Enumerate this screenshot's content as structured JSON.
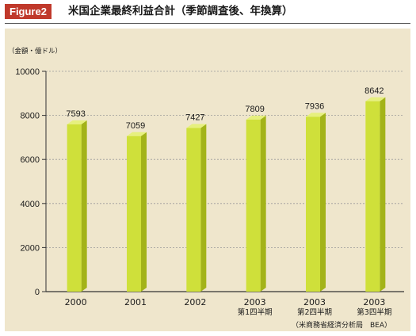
{
  "header": {
    "figure_tag": "Figure2",
    "title": "米国企業最終利益合計（季節調査後、年換算）"
  },
  "chart_data": {
    "type": "bar",
    "unit_label": "（金額・億ドル）",
    "categories": [
      [
        "2000"
      ],
      [
        "2001"
      ],
      [
        "2002"
      ],
      [
        "2003",
        "第1四半期"
      ],
      [
        "2003",
        "第2四半期"
      ],
      [
        "2003",
        "第3四半期"
      ]
    ],
    "values": [
      7593,
      7059,
      7427,
      7809,
      7936,
      8642
    ],
    "data_labels": [
      "7593",
      "7059",
      "7427",
      "7809",
      "7936",
      "8642"
    ],
    "ylim": [
      0,
      10000
    ],
    "yticks": [
      0,
      2000,
      4000,
      6000,
      8000,
      10000
    ],
    "grid": true,
    "bar_colors": {
      "front": "#cfe03a",
      "side": "#a3b319",
      "top": "#e6f07e"
    },
    "source": "（米商務省経済分析局　BEA）"
  }
}
